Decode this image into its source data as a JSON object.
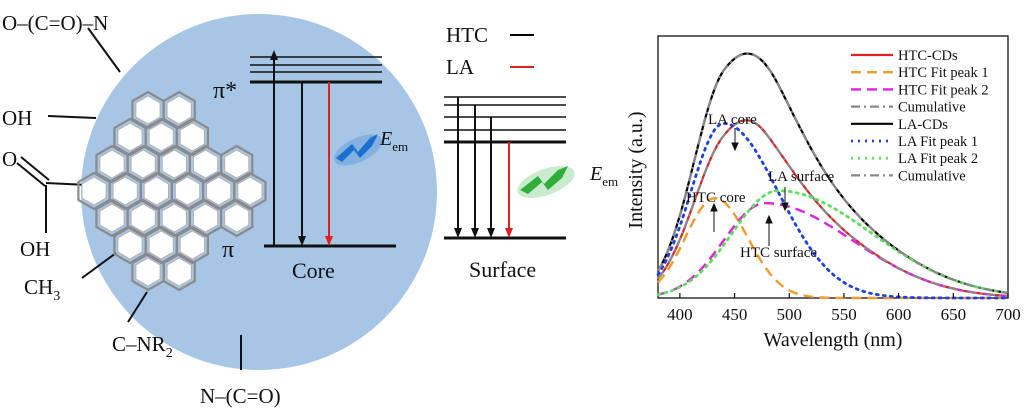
{
  "groups": {
    "ester_amide": "O–(C=O)–N",
    "hydroxyl": "OH",
    "carbonyl_o": "O",
    "carboxyl_oh": "OH",
    "methyl": "CH",
    "methyl_sub": "3",
    "amine": "C–NR",
    "amine_sub": "2",
    "amide": "N–(C=O)"
  },
  "core_diagram": {
    "pi_star": "π*",
    "pi": "π",
    "label": "Core",
    "emission": "E",
    "emission_sub": "em"
  },
  "surface_diagram": {
    "label": "Surface",
    "emission": "E",
    "emission_sub": "em"
  },
  "legend_small": {
    "htc": "HTC",
    "la": "LA"
  },
  "colors": {
    "circle": "#a7c6e6",
    "htc_line": "#000000",
    "la_line": "#e02020",
    "core_glow": "#1a6fd0",
    "surface_glow": "#2fae3a"
  },
  "chart_data": {
    "type": "line",
    "xlabel": "Wavelength (nm)",
    "ylabel": "Intensity (a.u.)",
    "xlim": [
      380,
      700
    ],
    "ylim": [
      0,
      1.05
    ],
    "xticks": [
      400,
      450,
      500,
      550,
      600,
      650,
      700
    ],
    "annotations": {
      "la_core": "LA core",
      "la_surface": "LA surface",
      "htc_core": "HTC core",
      "htc_surface": "HTC surface"
    },
    "series": [
      {
        "name": "HTC-CDs",
        "color": "#e02020",
        "style": "solid",
        "peaks": [
          [
            438,
            0.42,
            30,
            45
          ],
          [
            478,
            0.38,
            38,
            80
          ]
        ]
      },
      {
        "name": "HTC Fit peak 1",
        "color": "#f39a2c",
        "style": "dash",
        "peaks": [
          [
            432,
            0.4,
            27,
            30
          ]
        ]
      },
      {
        "name": "HTC Fit peak 2",
        "color": "#e020e0",
        "style": "dash",
        "peaks": [
          [
            478,
            0.38,
            38,
            80
          ]
        ]
      },
      {
        "name": "Cumulative",
        "color": "#888888",
        "style": "dashdot",
        "peaks": [
          [
            438,
            0.42,
            30,
            45
          ],
          [
            478,
            0.38,
            38,
            80
          ]
        ]
      },
      {
        "name": "LA-CDs",
        "color": "#000000",
        "style": "solid",
        "peaks": [
          [
            440,
            0.7,
            30,
            50
          ],
          [
            490,
            0.43,
            42,
            85
          ]
        ]
      },
      {
        "name": "LA Fit peak 1",
        "color": "#2040e0",
        "style": "dot",
        "peaks": [
          [
            440,
            0.7,
            30,
            50
          ]
        ]
      },
      {
        "name": "LA Fit peak 2",
        "color": "#5be05b",
        "style": "dot",
        "peaks": [
          [
            490,
            0.43,
            42,
            85
          ]
        ]
      },
      {
        "name": "Cumulative",
        "color": "#888888",
        "style": "dashdot",
        "peaks": [
          [
            440,
            0.7,
            30,
            50
          ],
          [
            490,
            0.43,
            42,
            85
          ]
        ]
      }
    ]
  }
}
